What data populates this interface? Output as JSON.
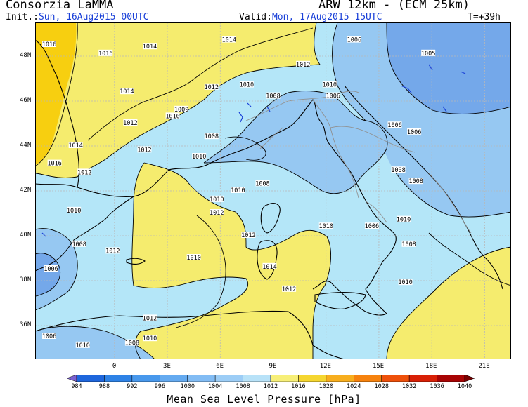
{
  "header": {
    "title": "Consorzia LaMMA",
    "model": "ARW 12km - (ECM 25km)",
    "init_label": "Init.:",
    "init_value": "Sun, 16Aug2015 00UTC",
    "valid_label": "Valid:",
    "valid_value": "Mon, 17Aug2015 15UTC",
    "lead_time": "T=+39h"
  },
  "map": {
    "lat_labels": [
      "48N",
      "46N",
      "44N",
      "42N",
      "40N",
      "38N",
      "36N"
    ],
    "lon_labels": [
      "0",
      "3E",
      "6E",
      "9E",
      "12E",
      "15E",
      "18E",
      "21E"
    ],
    "colors": {
      "sea": "#b4e6f8",
      "ridge_1016": "#f5ec6e",
      "high_1020": "#f7cf10",
      "trough_1008": "#96c8f2",
      "trough_1004": "#74a8ea",
      "coastline": "#000000",
      "isobar": "#000000",
      "border": "#909090",
      "river": "#1a40d8"
    },
    "isobar_labels": [
      {
        "text": "1016",
        "lon": -3.7,
        "lat": 48.5
      },
      {
        "text": "1016",
        "lon": -0.5,
        "lat": 48.1
      },
      {
        "text": "1014",
        "lon": 2.0,
        "lat": 48.4
      },
      {
        "text": "1014",
        "lon": 6.5,
        "lat": 48.7
      },
      {
        "text": "1014",
        "lon": 0.7,
        "lat": 46.4
      },
      {
        "text": "1012",
        "lon": 10.7,
        "lat": 47.6
      },
      {
        "text": "1012",
        "lon": 5.5,
        "lat": 46.6
      },
      {
        "text": "1010",
        "lon": 7.5,
        "lat": 46.7
      },
      {
        "text": "1008",
        "lon": 9.0,
        "lat": 46.2
      },
      {
        "text": "1009",
        "lon": 3.8,
        "lat": 45.6
      },
      {
        "text": "1010",
        "lon": 3.3,
        "lat": 45.3
      },
      {
        "text": "1012",
        "lon": 0.9,
        "lat": 45.0
      },
      {
        "text": "1008",
        "lon": 5.5,
        "lat": 44.4
      },
      {
        "text": "1014",
        "lon": -2.2,
        "lat": 44.0
      },
      {
        "text": "1012",
        "lon": 1.7,
        "lat": 43.8
      },
      {
        "text": "1010",
        "lon": 4.8,
        "lat": 43.5
      },
      {
        "text": "1016",
        "lon": -3.4,
        "lat": 43.2
      },
      {
        "text": "1012",
        "lon": -1.7,
        "lat": 42.8
      },
      {
        "text": "1008",
        "lon": 8.4,
        "lat": 42.3
      },
      {
        "text": "1010",
        "lon": 7.0,
        "lat": 42.0
      },
      {
        "text": "1010",
        "lon": 5.8,
        "lat": 41.6
      },
      {
        "text": "1012",
        "lon": 5.8,
        "lat": 41.0
      },
      {
        "text": "1010",
        "lon": -2.3,
        "lat": 41.1
      },
      {
        "text": "1008",
        "lon": -2.0,
        "lat": 39.6
      },
      {
        "text": "1012",
        "lon": -0.1,
        "lat": 39.3
      },
      {
        "text": "1012",
        "lon": 7.6,
        "lat": 40.0
      },
      {
        "text": "1010",
        "lon": 12.0,
        "lat": 40.4
      },
      {
        "text": "1006",
        "lon": 14.6,
        "lat": 40.4
      },
      {
        "text": "1008",
        "lon": 16.7,
        "lat": 39.6
      },
      {
        "text": "1010",
        "lon": 4.5,
        "lat": 39.0
      },
      {
        "text": "1014",
        "lon": 8.8,
        "lat": 38.6
      },
      {
        "text": "1012",
        "lon": 9.9,
        "lat": 37.6
      },
      {
        "text": "1006",
        "lon": -3.6,
        "lat": 38.5
      },
      {
        "text": "1010",
        "lon": 16.5,
        "lat": 37.9
      },
      {
        "text": "1012",
        "lon": 2.0,
        "lat": 36.3
      },
      {
        "text": "1010",
        "lon": 2.0,
        "lat": 35.4
      },
      {
        "text": "1008",
        "lon": 1.0,
        "lat": 35.2
      },
      {
        "text": "1010",
        "lon": -1.8,
        "lat": 35.1
      },
      {
        "text": "1006",
        "lon": -3.7,
        "lat": 35.5
      },
      {
        "text": "1006",
        "lon": 13.6,
        "lat": 48.7
      },
      {
        "text": "1005",
        "lon": 17.8,
        "lat": 48.1
      },
      {
        "text": "1010",
        "lon": 12.2,
        "lat": 46.7
      },
      {
        "text": "1006",
        "lon": 12.4,
        "lat": 46.2
      },
      {
        "text": "1006",
        "lon": 15.9,
        "lat": 44.9
      },
      {
        "text": "1006",
        "lon": 17.0,
        "lat": 44.6
      },
      {
        "text": "1008",
        "lon": 16.1,
        "lat": 42.9
      },
      {
        "text": "1008",
        "lon": 17.1,
        "lat": 42.4
      },
      {
        "text": "1010",
        "lon": 16.4,
        "lat": 40.7
      }
    ]
  },
  "legend": {
    "title": "Mean Sea Level Pressure [hPa]",
    "levels": [
      "984",
      "988",
      "992",
      "996",
      "1000",
      "1004",
      "1008",
      "1012",
      "1016",
      "1020",
      "1024",
      "1028",
      "1032",
      "1036",
      "1040"
    ],
    "colors": [
      "#7a60d0",
      "#1e66dc",
      "#2e82e6",
      "#4898ec",
      "#64aaf0",
      "#82bcf4",
      "#9ccdf6",
      "#b8e2f8",
      "#f7ef78",
      "#f5d630",
      "#f7ae1e",
      "#f6820e",
      "#ee500a",
      "#d82006",
      "#a80404",
      "#7a0000"
    ]
  }
}
